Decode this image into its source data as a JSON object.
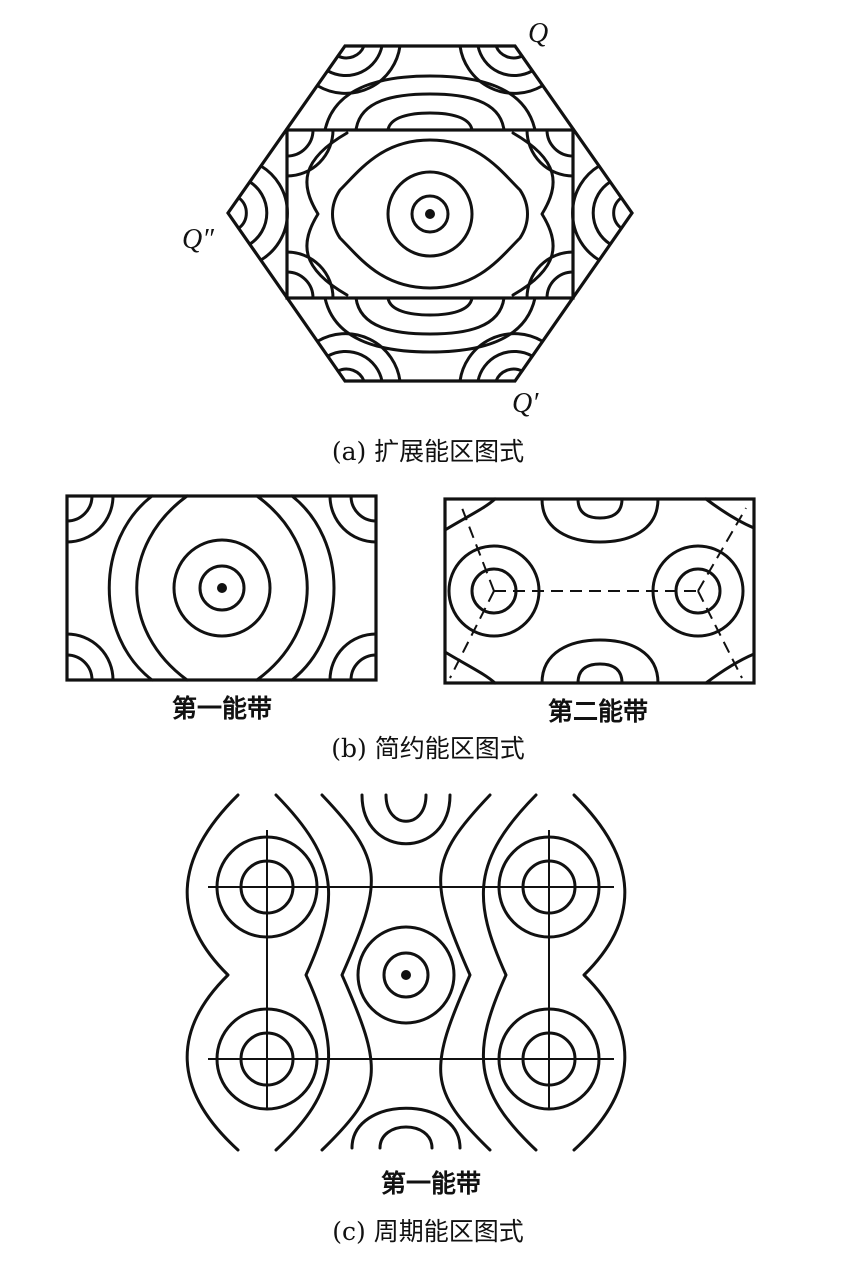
{
  "panel_a": {
    "caption": "(a) 扩展能区图式",
    "points": {
      "q": "Q",
      "q_prime": "Q′",
      "q_double_prime": "Q″"
    }
  },
  "panel_b": {
    "caption": "(b) 简约能区图式",
    "left_label": "第一能带",
    "right_label": "第二能带"
  },
  "panel_c": {
    "caption": "(c) 周期能区图式",
    "label": "第一能带"
  }
}
